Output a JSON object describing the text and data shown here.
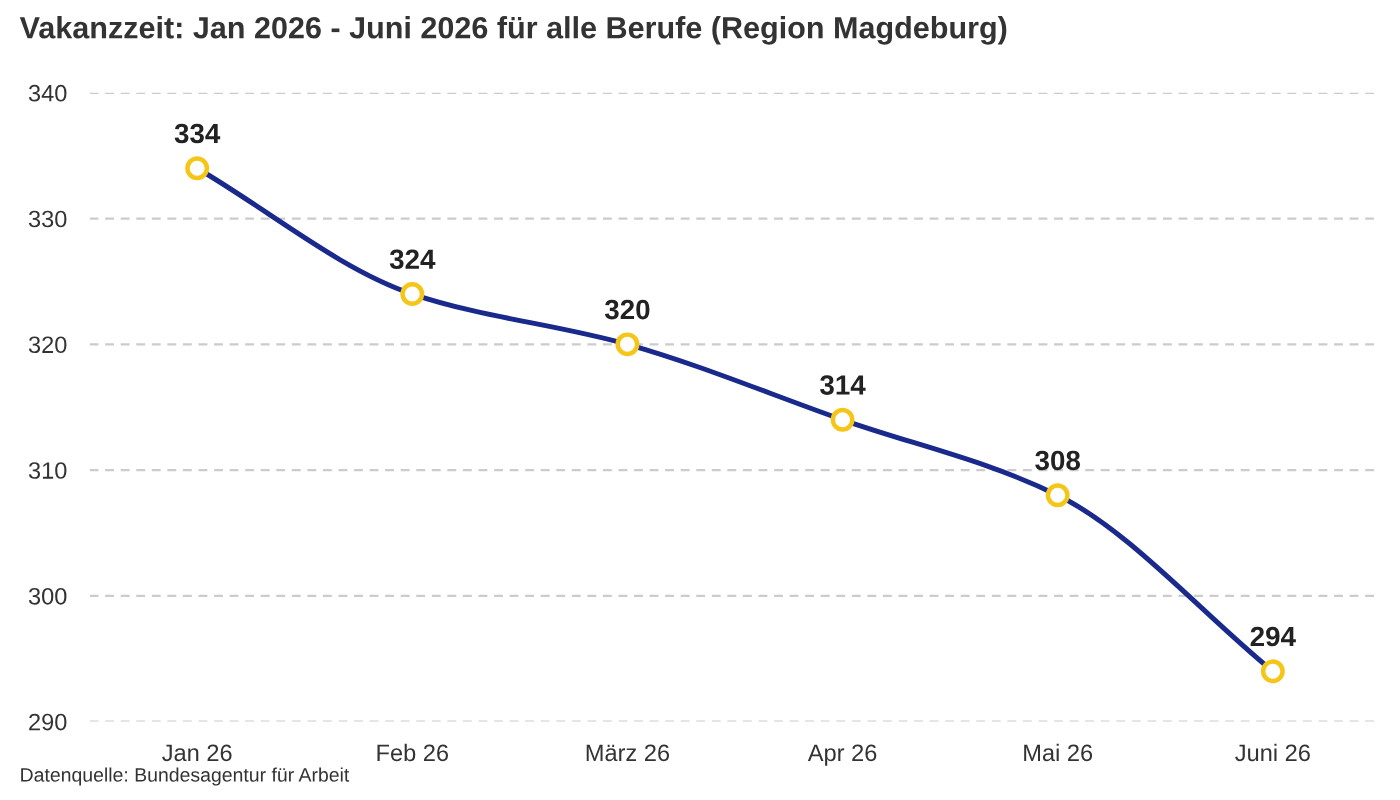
{
  "chart_data": {
    "type": "line",
    "title": "Vakanzzeit: Jan 2026 - Juni 2026 für alle Berufe (Region Magdeburg)",
    "categories": [
      "Jan 26",
      "Feb 26",
      "März 26",
      "Apr 26",
      "Mai 26",
      "Juni 26"
    ],
    "series": [
      {
        "color": "#1a2a8c",
        "values": [
          334,
          324,
          320,
          314,
          308,
          294
        ]
      }
    ],
    "marker": "circle",
    "line_style": "solid",
    "ylim": [
      290,
      340
    ],
    "yticks": [
      290,
      300,
      310,
      320,
      330,
      340
    ],
    "grid": "y",
    "data_labels": true,
    "annotations": [
      "Datenquelle: Bundesagentur für Arbeit"
    ]
  }
}
